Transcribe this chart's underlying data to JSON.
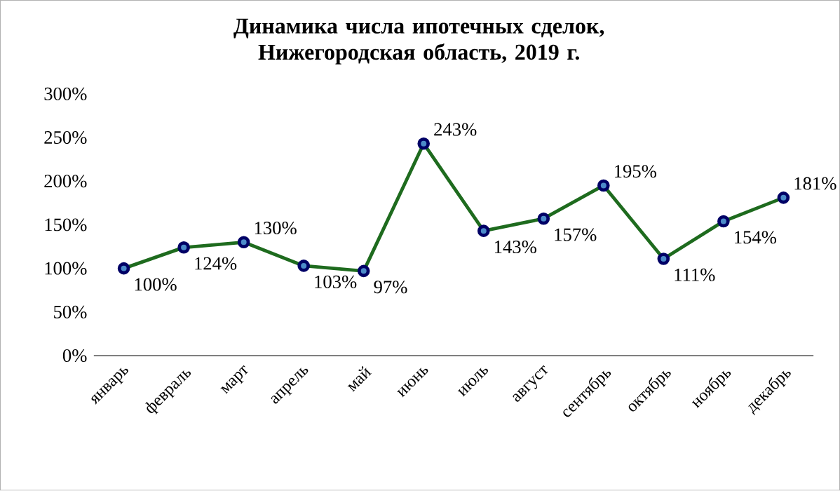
{
  "chart_data": {
    "type": "line",
    "title": "Динамика числа ипотечных сделок, Нижегородская область, 2019 г.",
    "categories": [
      "январь",
      "февраль",
      "март",
      "апрель",
      "май",
      "июнь",
      "июль",
      "август",
      "сентябрь",
      "октябрь",
      "ноябрь",
      "декабрь"
    ],
    "series": [
      {
        "color": "#1e6b1e",
        "values": [
          100,
          124,
          130,
          103,
          97,
          243,
          143,
          157,
          195,
          111,
          154,
          181
        ],
        "value_labels": [
          "100%",
          "124%",
          "130%",
          "103%",
          "97%",
          "243%",
          "143%",
          "157%",
          "195%",
          "111%",
          "154%",
          "181%"
        ]
      }
    ],
    "ylim": [
      0,
      300
    ],
    "yticks": [
      {
        "value": 0,
        "label": "0%"
      },
      {
        "value": 50,
        "label": "50%"
      },
      {
        "value": 100,
        "label": "100%"
      },
      {
        "value": 150,
        "label": "150%"
      },
      {
        "value": 200,
        "label": "200%"
      },
      {
        "value": 250,
        "label": "250%"
      },
      {
        "value": 300,
        "label": "300%"
      }
    ],
    "marker": "circle",
    "line_style": "solid"
  }
}
